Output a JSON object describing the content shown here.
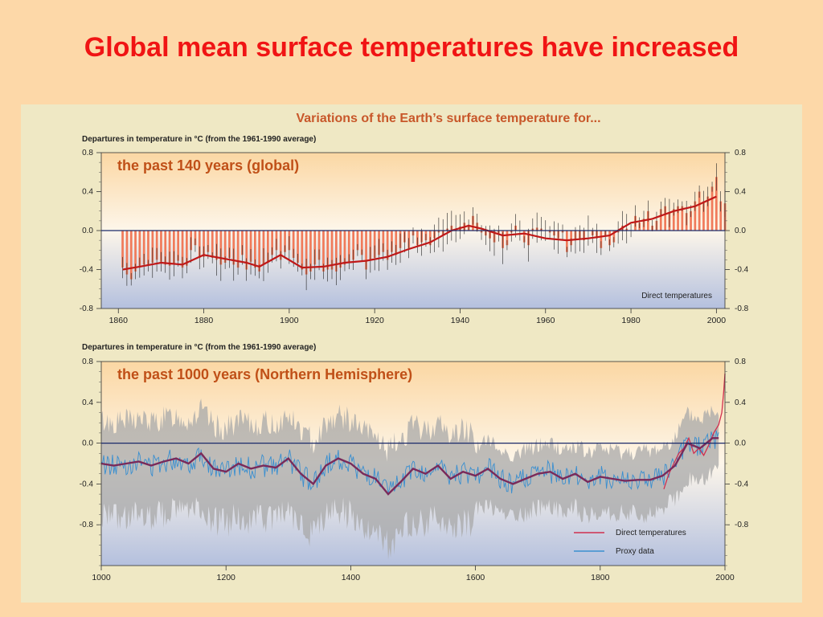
{
  "slide": {
    "title": "Global mean surface temperatures have increased"
  },
  "figure": {
    "title": "Variations of the Earth’s surface temperature for...",
    "background": "#efe8c4",
    "title_color": "#c8572a"
  },
  "chart_data": [
    {
      "type": "bar",
      "title": "the past 140 years (global)",
      "ylabel": "Departures in temperature in °C (from the 1961-1990 average)",
      "xlim": [
        1856,
        2002
      ],
      "ylim": [
        -0.8,
        0.8
      ],
      "yticks": [
        "0.8",
        "0.4",
        "0.0",
        "-0.4",
        "-0.8"
      ],
      "xticks": [
        "1860",
        "1880",
        "1900",
        "1920",
        "1940",
        "1960",
        "1980",
        "2000"
      ],
      "legend": [
        {
          "label": "Direct temperatures",
          "color": "#e05030"
        }
      ],
      "bar_color": "#f07a5a",
      "smooth_color": "#c01818",
      "x_start": 1861,
      "values": [
        -0.38,
        -0.45,
        -0.5,
        -0.42,
        -0.38,
        -0.35,
        -0.36,
        -0.33,
        -0.3,
        -0.32,
        -0.35,
        -0.36,
        -0.34,
        -0.31,
        -0.38,
        -0.36,
        -0.2,
        -0.15,
        -0.28,
        -0.27,
        -0.22,
        -0.28,
        -0.3,
        -0.35,
        -0.33,
        -0.28,
        -0.35,
        -0.38,
        -0.25,
        -0.4,
        -0.32,
        -0.38,
        -0.42,
        -0.35,
        -0.33,
        -0.25,
        -0.2,
        -0.3,
        -0.22,
        -0.2,
        -0.28,
        -0.33,
        -0.4,
        -0.45,
        -0.42,
        -0.35,
        -0.3,
        -0.42,
        -0.4,
        -0.4,
        -0.42,
        -0.38,
        -0.35,
        -0.32,
        -0.3,
        -0.2,
        -0.25,
        -0.4,
        -0.3,
        -0.28,
        -0.25,
        -0.22,
        -0.3,
        -0.22,
        -0.25,
        -0.18,
        -0.12,
        -0.18,
        -0.05,
        -0.15,
        -0.12,
        -0.1,
        -0.15,
        -0.08,
        -0.02,
        -0.05,
        0.02,
        0.05,
        0.02,
        0.04,
        0.08,
        0.06,
        0.15,
        0.08,
        -0.02,
        -0.05,
        -0.08,
        -0.12,
        -0.03,
        -0.18,
        -0.15,
        -0.02,
        0.05,
        0.0,
        -0.12,
        -0.15,
        0.02,
        0.03,
        0.02,
        0.0,
        -0.02,
        -0.05,
        -0.08,
        -0.02,
        -0.22,
        -0.15,
        -0.1,
        -0.08,
        -0.1,
        0.0,
        -0.05,
        -0.08,
        -0.18,
        -0.05,
        -0.15,
        -0.12,
        -0.02,
        0.05,
        0.02,
        0.0,
        0.15,
        0.08,
        0.12,
        0.2,
        0.05,
        0.1,
        0.22,
        0.25,
        0.18,
        0.22,
        0.25,
        0.25,
        0.18,
        0.2,
        0.3,
        0.4,
        0.3,
        0.35,
        0.45,
        0.55,
        0.3,
        0.28
      ],
      "smooth": {
        "x": [
          1861,
          1865,
          1870,
          1875,
          1880,
          1885,
          1890,
          1893,
          1898,
          1903,
          1908,
          1913,
          1918,
          1923,
          1928,
          1933,
          1938,
          1942,
          1945,
          1950,
          1955,
          1960,
          1965,
          1970,
          1975,
          1980,
          1985,
          1990,
          1995,
          2000
        ],
        "y": [
          -0.4,
          -0.37,
          -0.33,
          -0.35,
          -0.25,
          -0.29,
          -0.33,
          -0.37,
          -0.25,
          -0.38,
          -0.37,
          -0.33,
          -0.31,
          -0.27,
          -0.19,
          -0.12,
          0.0,
          0.05,
          0.02,
          -0.05,
          -0.03,
          -0.08,
          -0.1,
          -0.08,
          -0.05,
          0.08,
          0.12,
          0.2,
          0.25,
          0.35
        ]
      },
      "annotation": "Direct temperatures"
    },
    {
      "type": "line",
      "title": "the past 1000 years (Northern Hemisphere)",
      "ylabel": "Departures in temperature in °C (from the 1961-1990 average)",
      "xlim": [
        1000,
        2000
      ],
      "ylim": [
        -1.2,
        0.8
      ],
      "yticks": [
        "0.8",
        "0.4",
        "0.0",
        "-0.4",
        "-0.8"
      ],
      "xticks": [
        "1000",
        "1200",
        "1400",
        "1600",
        "1800",
        "2000"
      ],
      "legend": [
        {
          "label": "Direct temperatures",
          "color": "#d03050"
        },
        {
          "label": "Proxy data",
          "color": "#3a8fd0"
        }
      ],
      "smooth_color": "#7a2a5a",
      "proxy_color": "#3a8fd0",
      "band_color": "#a8a8a8",
      "smooth": {
        "x": [
          1000,
          1020,
          1040,
          1060,
          1080,
          1100,
          1120,
          1140,
          1160,
          1180,
          1200,
          1220,
          1240,
          1260,
          1280,
          1300,
          1320,
          1340,
          1360,
          1380,
          1400,
          1420,
          1440,
          1460,
          1480,
          1500,
          1520,
          1540,
          1560,
          1580,
          1600,
          1620,
          1640,
          1660,
          1680,
          1700,
          1720,
          1740,
          1760,
          1780,
          1800,
          1820,
          1840,
          1860,
          1880,
          1900,
          1920,
          1940,
          1960,
          1980,
          1990
        ],
        "y": [
          -0.2,
          -0.22,
          -0.2,
          -0.18,
          -0.22,
          -0.18,
          -0.15,
          -0.2,
          -0.1,
          -0.25,
          -0.28,
          -0.2,
          -0.25,
          -0.22,
          -0.24,
          -0.15,
          -0.3,
          -0.4,
          -0.22,
          -0.15,
          -0.2,
          -0.3,
          -0.35,
          -0.5,
          -0.38,
          -0.25,
          -0.3,
          -0.22,
          -0.35,
          -0.28,
          -0.32,
          -0.25,
          -0.35,
          -0.4,
          -0.35,
          -0.3,
          -0.28,
          -0.35,
          -0.3,
          -0.38,
          -0.33,
          -0.35,
          -0.37,
          -0.36,
          -0.36,
          -0.32,
          -0.22,
          0.0,
          -0.05,
          0.05,
          0.05
        ]
      },
      "direct": {
        "x": [
          1902,
          1910,
          1918,
          1926,
          1934,
          1942,
          1950,
          1958,
          1966,
          1974,
          1982,
          1990,
          1995,
          1998,
          2000
        ],
        "y": [
          -0.45,
          -0.3,
          -0.2,
          -0.1,
          -0.05,
          0.05,
          -0.1,
          -0.05,
          -0.12,
          -0.02,
          0.1,
          0.18,
          0.3,
          0.5,
          0.68
        ]
      },
      "annotation": [
        "Direct temperatures",
        "Proxy data"
      ]
    }
  ]
}
